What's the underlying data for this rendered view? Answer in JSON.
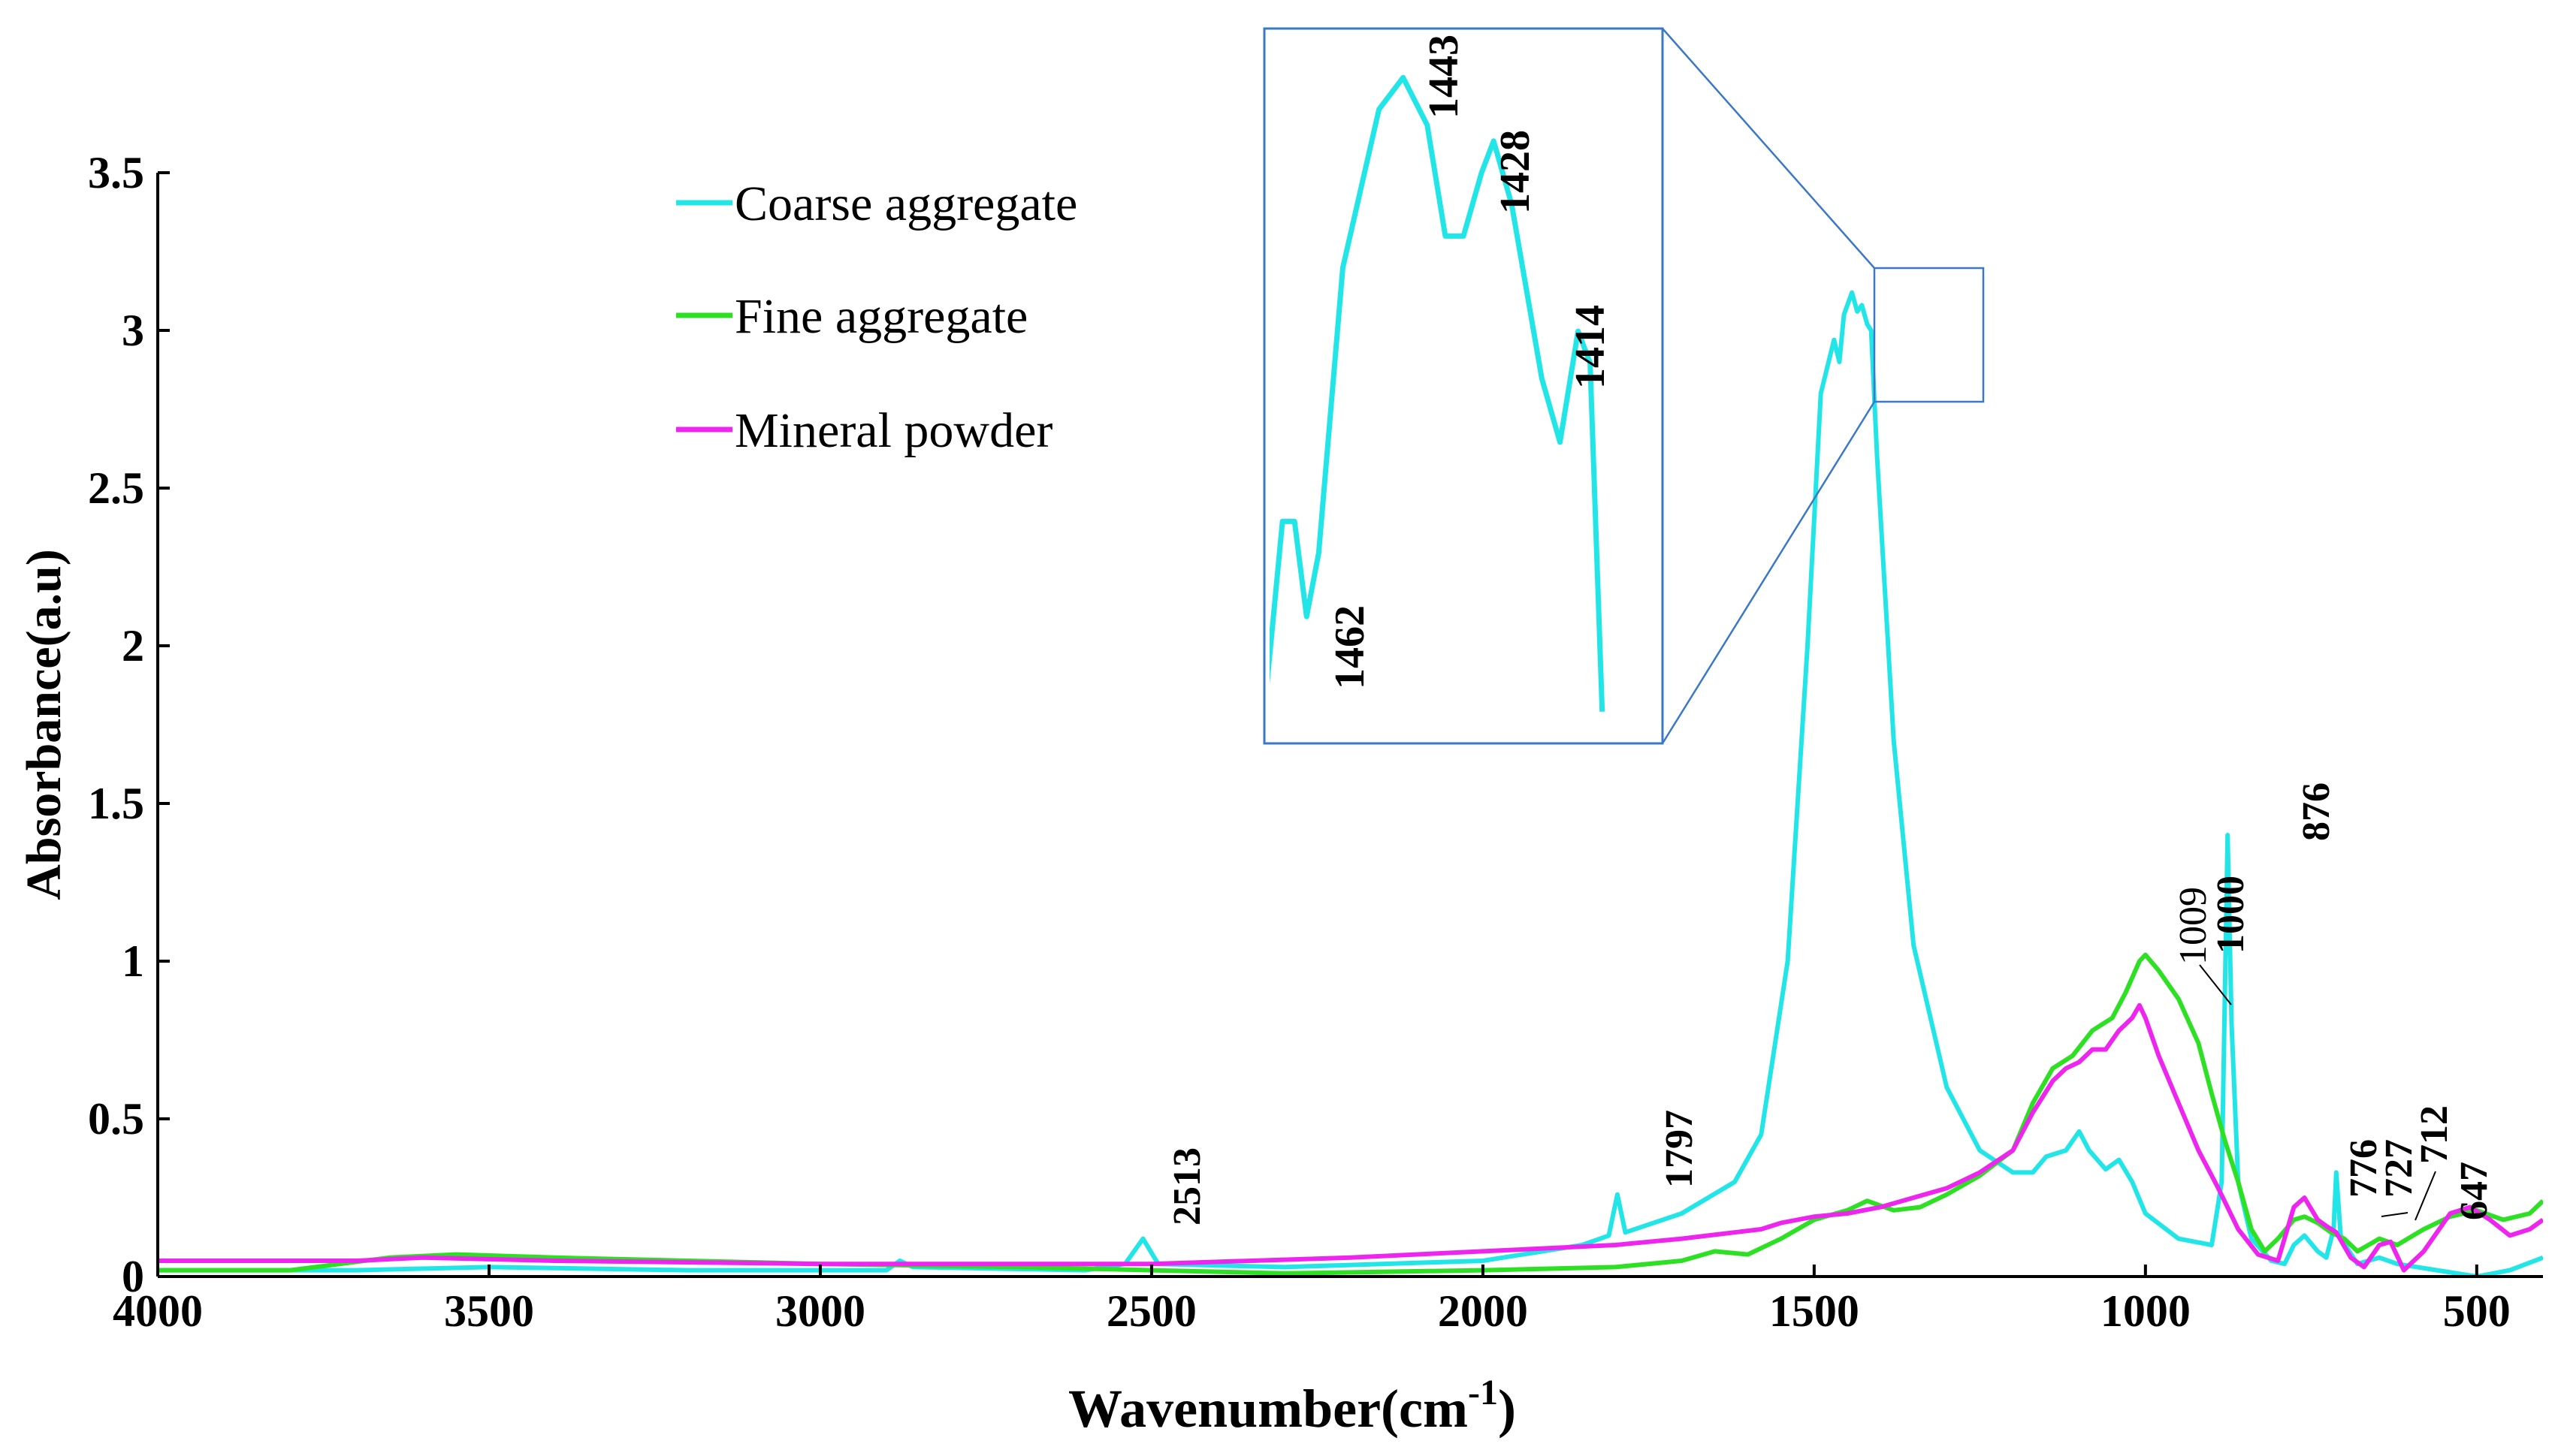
{
  "chart_data": {
    "type": "line",
    "title": "",
    "xlabel": "Wavenumber(cm",
    "xlabel_sup": "-1",
    "xlabel_end": ")",
    "ylabel": "Absorbance(a.u)",
    "xlim": [
      4000,
      400
    ],
    "ylim": [
      0,
      3.5
    ],
    "x_reversed": true,
    "x_ticks": [
      4000,
      3500,
      3000,
      2500,
      2000,
      1500,
      1000,
      500
    ],
    "x_tick_labels": [
      "4000",
      "3500",
      "3000",
      "2500",
      "2000",
      "1500",
      "1000",
      "500"
    ],
    "y_ticks": [
      0,
      0.5,
      1,
      1.5,
      2,
      2.5,
      3,
      3.5
    ],
    "y_tick_labels": [
      "0",
      "0.5",
      "1",
      "1.5",
      "2",
      "2.5",
      "3",
      "3.5"
    ],
    "legend_position": "top-left",
    "series": [
      {
        "name": "Coarse aggregate",
        "color": "#22e5e8",
        "points": [
          [
            4000,
            0.02
          ],
          [
            3700,
            0.02
          ],
          [
            3500,
            0.03
          ],
          [
            3200,
            0.02
          ],
          [
            2900,
            0.02
          ],
          [
            2880,
            0.05
          ],
          [
            2860,
            0.03
          ],
          [
            2600,
            0.02
          ],
          [
            2540,
            0.04
          ],
          [
            2513,
            0.12
          ],
          [
            2490,
            0.04
          ],
          [
            2300,
            0.03
          ],
          [
            2000,
            0.05
          ],
          [
            1850,
            0.1
          ],
          [
            1810,
            0.13
          ],
          [
            1797,
            0.26
          ],
          [
            1785,
            0.14
          ],
          [
            1700,
            0.2
          ],
          [
            1620,
            0.3
          ],
          [
            1580,
            0.45
          ],
          [
            1540,
            1.0
          ],
          [
            1510,
            2.0
          ],
          [
            1490,
            2.8
          ],
          [
            1470,
            2.97
          ],
          [
            1462,
            2.9
          ],
          [
            1455,
            3.05
          ],
          [
            1443,
            3.12
          ],
          [
            1435,
            3.06
          ],
          [
            1428,
            3.08
          ],
          [
            1420,
            3.02
          ],
          [
            1414,
            3.0
          ],
          [
            1405,
            2.6
          ],
          [
            1380,
            1.7
          ],
          [
            1350,
            1.05
          ],
          [
            1300,
            0.6
          ],
          [
            1250,
            0.4
          ],
          [
            1200,
            0.33
          ],
          [
            1170,
            0.33
          ],
          [
            1150,
            0.38
          ],
          [
            1120,
            0.4
          ],
          [
            1100,
            0.46
          ],
          [
            1085,
            0.4
          ],
          [
            1060,
            0.34
          ],
          [
            1040,
            0.37
          ],
          [
            1020,
            0.3
          ],
          [
            1000,
            0.2
          ],
          [
            950,
            0.12
          ],
          [
            900,
            0.1
          ],
          [
            885,
            0.3
          ],
          [
            876,
            1.4
          ],
          [
            870,
            0.8
          ],
          [
            860,
            0.3
          ],
          [
            840,
            0.12
          ],
          [
            810,
            0.05
          ],
          [
            790,
            0.04
          ],
          [
            776,
            0.1
          ],
          [
            760,
            0.13
          ],
          [
            740,
            0.08
          ],
          [
            727,
            0.06
          ],
          [
            716,
            0.15
          ],
          [
            712,
            0.33
          ],
          [
            705,
            0.12
          ],
          [
            680,
            0.04
          ],
          [
            647,
            0.06
          ],
          [
            620,
            0.04
          ],
          [
            560,
            0.02
          ],
          [
            500,
            0.0
          ],
          [
            450,
            0.02
          ],
          [
            400,
            0.06
          ]
        ]
      },
      {
        "name": "Fine aggregate",
        "color": "#2ee024",
        "points": [
          [
            4000,
            0.02
          ],
          [
            3800,
            0.02
          ],
          [
            3650,
            0.06
          ],
          [
            3550,
            0.07
          ],
          [
            3400,
            0.06
          ],
          [
            3200,
            0.05
          ],
          [
            3000,
            0.04
          ],
          [
            2700,
            0.03
          ],
          [
            2500,
            0.02
          ],
          [
            2300,
            0.01
          ],
          [
            2000,
            0.02
          ],
          [
            1800,
            0.03
          ],
          [
            1700,
            0.05
          ],
          [
            1650,
            0.08
          ],
          [
            1600,
            0.07
          ],
          [
            1550,
            0.12
          ],
          [
            1500,
            0.18
          ],
          [
            1450,
            0.21
          ],
          [
            1420,
            0.24
          ],
          [
            1380,
            0.21
          ],
          [
            1340,
            0.22
          ],
          [
            1300,
            0.26
          ],
          [
            1250,
            0.32
          ],
          [
            1200,
            0.4
          ],
          [
            1170,
            0.55
          ],
          [
            1140,
            0.66
          ],
          [
            1110,
            0.7
          ],
          [
            1080,
            0.78
          ],
          [
            1050,
            0.82
          ],
          [
            1030,
            0.9
          ],
          [
            1009,
            1.0
          ],
          [
            1000,
            1.02
          ],
          [
            980,
            0.97
          ],
          [
            950,
            0.88
          ],
          [
            920,
            0.74
          ],
          [
            900,
            0.58
          ],
          [
            880,
            0.43
          ],
          [
            860,
            0.3
          ],
          [
            840,
            0.15
          ],
          [
            820,
            0.08
          ],
          [
            800,
            0.12
          ],
          [
            776,
            0.18
          ],
          [
            760,
            0.19
          ],
          [
            740,
            0.17
          ],
          [
            720,
            0.14
          ],
          [
            700,
            0.12
          ],
          [
            680,
            0.08
          ],
          [
            647,
            0.12
          ],
          [
            620,
            0.1
          ],
          [
            580,
            0.15
          ],
          [
            540,
            0.19
          ],
          [
            500,
            0.21
          ],
          [
            460,
            0.18
          ],
          [
            420,
            0.2
          ],
          [
            400,
            0.24
          ]
        ]
      },
      {
        "name": "Mineral powder",
        "color": "#ee25ee",
        "points": [
          [
            4000,
            0.05
          ],
          [
            3700,
            0.05
          ],
          [
            3600,
            0.06
          ],
          [
            3400,
            0.05
          ],
          [
            3000,
            0.04
          ],
          [
            2500,
            0.04
          ],
          [
            2200,
            0.06
          ],
          [
            2000,
            0.08
          ],
          [
            1800,
            0.1
          ],
          [
            1700,
            0.12
          ],
          [
            1620,
            0.14
          ],
          [
            1580,
            0.15
          ],
          [
            1550,
            0.17
          ],
          [
            1500,
            0.19
          ],
          [
            1450,
            0.2
          ],
          [
            1400,
            0.22
          ],
          [
            1300,
            0.28
          ],
          [
            1250,
            0.33
          ],
          [
            1200,
            0.4
          ],
          [
            1170,
            0.52
          ],
          [
            1140,
            0.62
          ],
          [
            1120,
            0.66
          ],
          [
            1100,
            0.68
          ],
          [
            1080,
            0.72
          ],
          [
            1060,
            0.72
          ],
          [
            1040,
            0.78
          ],
          [
            1020,
            0.82
          ],
          [
            1009,
            0.86
          ],
          [
            1000,
            0.82
          ],
          [
            980,
            0.7
          ],
          [
            950,
            0.55
          ],
          [
            920,
            0.4
          ],
          [
            890,
            0.28
          ],
          [
            860,
            0.15
          ],
          [
            830,
            0.07
          ],
          [
            800,
            0.05
          ],
          [
            776,
            0.22
          ],
          [
            760,
            0.25
          ],
          [
            740,
            0.18
          ],
          [
            727,
            0.16
          ],
          [
            712,
            0.14
          ],
          [
            690,
            0.06
          ],
          [
            670,
            0.03
          ],
          [
            647,
            0.1
          ],
          [
            630,
            0.11
          ],
          [
            610,
            0.02
          ],
          [
            580,
            0.08
          ],
          [
            540,
            0.2
          ],
          [
            510,
            0.22
          ],
          [
            480,
            0.18
          ],
          [
            450,
            0.13
          ],
          [
            420,
            0.15
          ],
          [
            400,
            0.18
          ]
        ]
      }
    ],
    "peak_labels": [
      "2513",
      "1797",
      "1009",
      "1000",
      "876",
      "776",
      "727",
      "712",
      "647"
    ],
    "inset": {
      "xlim": [
        1466,
        1400
      ],
      "ylim": [
        2.7,
        3.15
      ],
      "peak_labels": [
        "1462",
        "1443",
        "1428",
        "1414"
      ]
    }
  }
}
